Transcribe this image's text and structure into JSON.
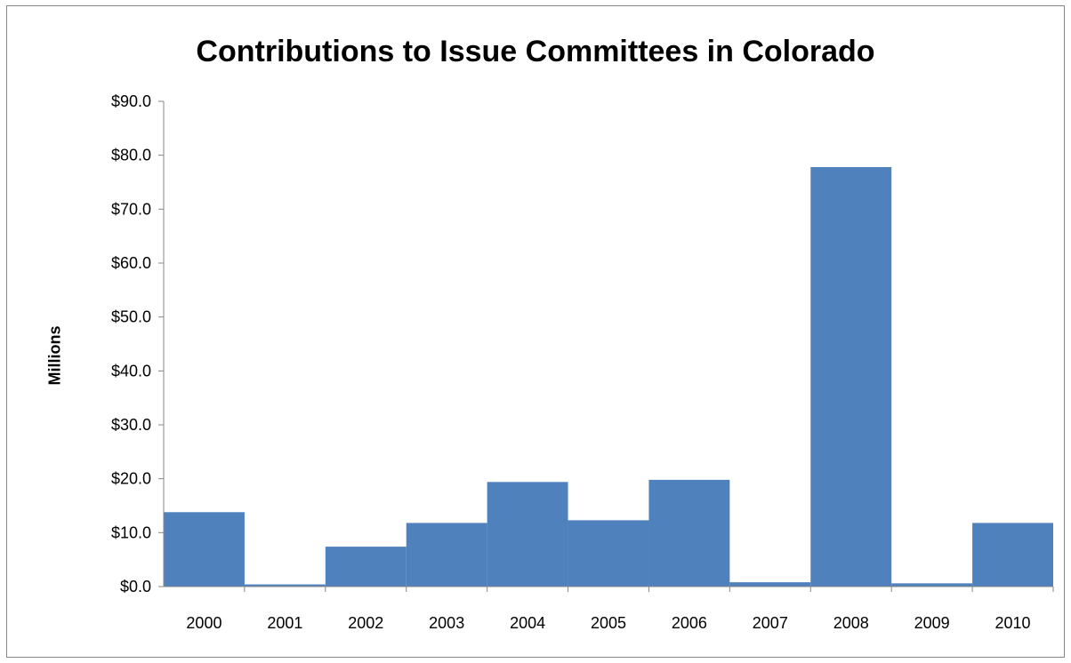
{
  "chart_data": {
    "type": "bar",
    "title": "Contributions to Issue Committees in Colorado",
    "ylabel": "Millions",
    "xlabel": "",
    "categories": [
      "2000",
      "2001",
      "2002",
      "2003",
      "2004",
      "2005",
      "2006",
      "2007",
      "2008",
      "2009",
      "2010"
    ],
    "values": [
      13.8,
      0.4,
      7.4,
      11.8,
      19.4,
      12.3,
      19.8,
      0.8,
      77.8,
      0.6,
      11.8
    ],
    "ylim": [
      0,
      90
    ],
    "yticks": [
      0,
      10,
      20,
      30,
      40,
      50,
      60,
      70,
      80,
      90
    ],
    "ytick_labels": [
      "$0.0",
      "$10.0",
      "$20.0",
      "$30.0",
      "$40.0",
      "$50.0",
      "$60.0",
      "$70.0",
      "$80.0",
      "$90.0"
    ],
    "bar_color": "#4F81BD",
    "grid": false,
    "legend": "none"
  }
}
